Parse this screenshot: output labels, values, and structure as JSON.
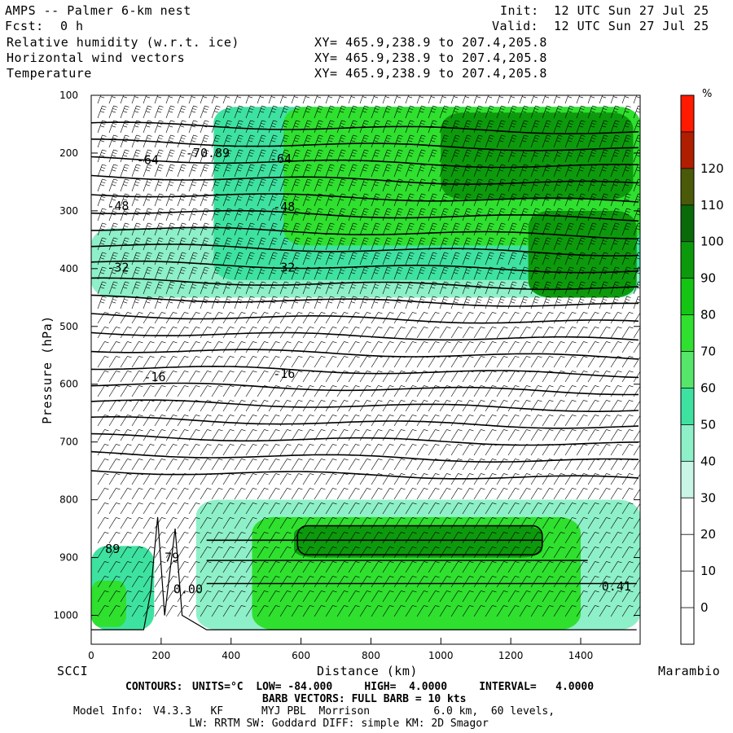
{
  "header": {
    "title": "AMPS -- Palmer 6-km nest",
    "init_label": "Init:",
    "init_value": "12 UTC Sun 27 Jul 25",
    "fcst_label": "Fcst:",
    "fcst_value": "0 h",
    "valid_label": "Valid:",
    "valid_value": "12 UTC Sun 27 Jul 25",
    "fields": [
      {
        "name": "Relative humidity (w.r.t. ice)",
        "xy": "XY= 465.9,238.9 to 207.4,205.8"
      },
      {
        "name": "Horizontal wind vectors",
        "xy": "XY= 465.9,238.9 to 207.4,205.8"
      },
      {
        "name": "Temperature",
        "xy": "XY= 465.9,238.9 to 207.4,205.8"
      }
    ]
  },
  "chart_data": {
    "type": "heatmap",
    "xlabel": "Distance (km)",
    "ylabel": "Pressure (hPa)",
    "xlim": [
      0,
      1570
    ],
    "ylim": [
      1050,
      100
    ],
    "x_ticks": [
      0,
      200,
      400,
      600,
      800,
      1000,
      1200,
      1400
    ],
    "y_ticks": [
      100,
      200,
      300,
      400,
      500,
      600,
      700,
      800,
      900,
      1000
    ],
    "left_endpoint": "SCCI",
    "right_endpoint": "Marambio",
    "colorbar": {
      "unit": "%",
      "ticks": [
        0,
        10,
        20,
        30,
        40,
        50,
        60,
        70,
        80,
        90,
        100,
        110,
        120
      ],
      "levels": [
        {
          "from": -10,
          "to": 0,
          "color": "#ffffff"
        },
        {
          "from": 0,
          "to": 10,
          "color": "#ffffff"
        },
        {
          "from": 10,
          "to": 20,
          "color": "#ffffff"
        },
        {
          "from": 20,
          "to": 30,
          "color": "#ffffff"
        },
        {
          "from": 30,
          "to": 40,
          "color": "#c8f5e6"
        },
        {
          "from": 40,
          "to": 50,
          "color": "#8ef0c8"
        },
        {
          "from": 50,
          "to": 60,
          "color": "#3ee2a0"
        },
        {
          "from": 60,
          "to": 70,
          "color": "#56e66a"
        },
        {
          "from": 70,
          "to": 80,
          "color": "#2fe02f"
        },
        {
          "from": 80,
          "to": 90,
          "color": "#14c514"
        },
        {
          "from": 90,
          "to": 100,
          "color": "#0c9a0c"
        },
        {
          "from": 100,
          "to": 110,
          "color": "#0a6a0a"
        },
        {
          "from": 110,
          "to": 120,
          "color": "#4a5a08"
        },
        {
          "from": 120,
          "to": 130,
          "color": "#b01e00"
        },
        {
          "from": 130,
          "to": 140,
          "color": "#ff1a00"
        }
      ]
    },
    "humidity_regions": [
      {
        "level": 45,
        "x0": 0,
        "x1": 1570,
        "p0": 330,
        "p1": 450
      },
      {
        "level": 55,
        "x0": 350,
        "x1": 1570,
        "p0": 120,
        "p1": 420
      },
      {
        "level": 75,
        "x0": 550,
        "x1": 1570,
        "p0": 120,
        "p1": 360
      },
      {
        "level": 95,
        "x0": 1000,
        "x1": 1550,
        "p0": 130,
        "p1": 280
      },
      {
        "level": 95,
        "x0": 1250,
        "x1": 1560,
        "p0": 300,
        "p1": 450
      },
      {
        "level": 45,
        "x0": 300,
        "x1": 1570,
        "p0": 800,
        "p1": 1025
      },
      {
        "level": 75,
        "x0": 460,
        "x1": 1400,
        "p0": 830,
        "p1": 1025
      },
      {
        "level": 95,
        "x0": 580,
        "x1": 1290,
        "p0": 845,
        "p1": 900
      },
      {
        "level": 55,
        "x0": 0,
        "x1": 180,
        "p0": 880,
        "p1": 1025
      },
      {
        "level": 75,
        "x0": 0,
        "x1": 100,
        "p0": 940,
        "p1": 1020
      },
      {
        "level": 45,
        "x0": 1430,
        "x1": 1570,
        "p0": 870,
        "p1": 1000
      }
    ],
    "temperature_contours": [
      {
        "value": -64,
        "p_left": 210,
        "p_right": 220
      },
      {
        "value": -48,
        "p_left": 290,
        "p_right": 300
      },
      {
        "value": -32,
        "p_left": 400,
        "p_right": 400
      },
      {
        "value": -16,
        "p_left": 585,
        "p_right": 575
      }
    ],
    "contour_labels": [
      "-64",
      "-48",
      "-32",
      "-16",
      "-70.89",
      "-64",
      "-48",
      "-32",
      "-16",
      "89",
      "79",
      "0.00",
      "0.41"
    ]
  },
  "footer": {
    "contours_label": "CONTOURS:",
    "contours_info": "UNITS=°C  LOW= -84.000     HIGH=  4.0000     INTERVAL=   4.0000",
    "barb_info": "BARB VECTORS: FULL BARB = 10 kts",
    "model_label": "Model Info:",
    "model_info": "V4.3.3   KF      MYJ PBL  Morrison          6.0 km,  60 levels,",
    "model_info2": "LW: RRTM SW: Goddard DIFF: simple KM: 2D Smagor"
  }
}
